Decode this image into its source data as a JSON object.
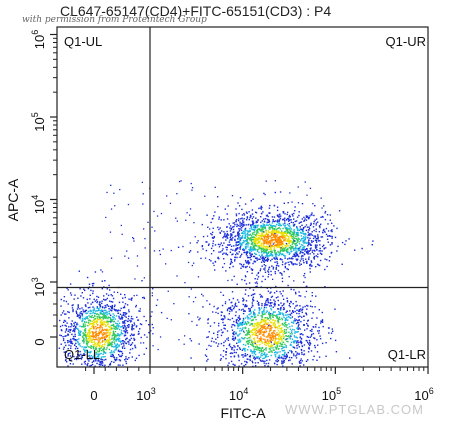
{
  "chart_data": {
    "type": "scatter",
    "title": "CL647-65147(CD4)+FITC-65151(CD3) : P4",
    "xlabel": "FITC-A",
    "ylabel": "APC-A",
    "x_scale": "biexponential",
    "y_scale": "biexponential",
    "x_ticks": [
      {
        "value": 0,
        "base": "0",
        "exp": ""
      },
      {
        "value": 1000,
        "base": "10",
        "exp": "3"
      },
      {
        "value": 10000,
        "base": "10",
        "exp": "4"
      },
      {
        "value": 100000,
        "base": "10",
        "exp": "5"
      },
      {
        "value": 1000000,
        "base": "10",
        "exp": "6"
      }
    ],
    "y_ticks": [
      {
        "value": 0,
        "base": "0",
        "exp": ""
      },
      {
        "value": 1000,
        "base": "10",
        "exp": "3"
      },
      {
        "value": 10000,
        "base": "10",
        "exp": "4"
      },
      {
        "value": 100000,
        "base": "10",
        "exp": "5"
      },
      {
        "value": 1000000,
        "base": "10",
        "exp": "6"
      }
    ],
    "gate": {
      "x": 1000,
      "y": 900
    },
    "quadrants": [
      "Q1-UL",
      "Q1-UR",
      "Q1-LL",
      "Q1-LR"
    ],
    "populations": [
      {
        "name": "",
        "center": [
          21000,
          3300
        ],
        "spread": [
          0.3,
          0.17
        ],
        "count": 1700
      },
      {
        "name": "",
        "center": [
          18000,
          80
        ],
        "spread": [
          0.27,
          0.5
        ],
        "count": 1400
      },
      {
        "name": "",
        "center": [
          80,
          80
        ],
        "spread": [
          0.45,
          0.5
        ],
        "count": 1300
      }
    ],
    "grid": false
  },
  "watermark": {
    "top": "with permission from Proteintech Group",
    "bottom": "WWW.PTGLAB.COM"
  }
}
